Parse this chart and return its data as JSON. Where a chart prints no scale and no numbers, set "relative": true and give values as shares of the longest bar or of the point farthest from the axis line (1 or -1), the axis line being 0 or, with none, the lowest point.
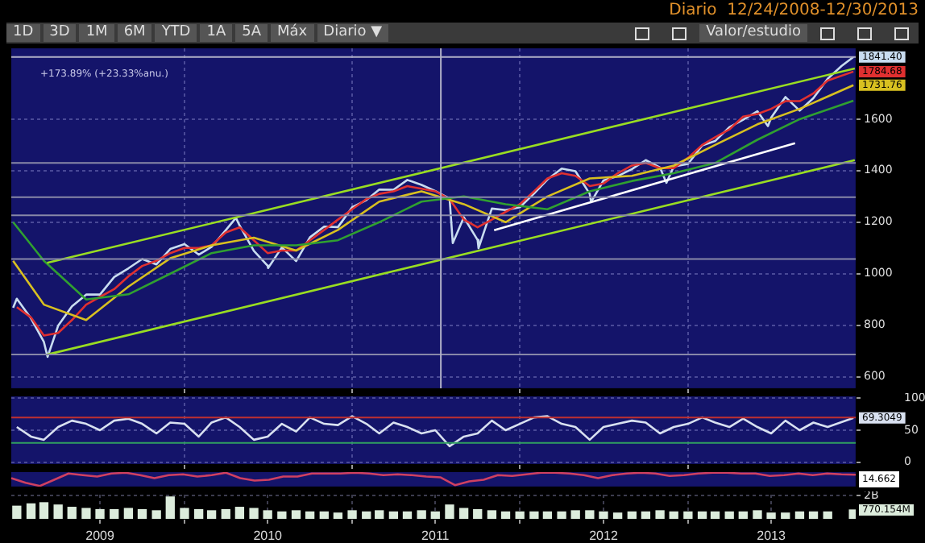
{
  "chart_data": [
    {
      "type": "other",
      "subtitle": "Diario  12/24/2008-12/30/2013",
      "annotations": [
        "1D",
        "3D",
        "1M",
        "6M",
        "YTD",
        "1A",
        "5A",
        "Máx",
        "Diario ▼",
        "Valor/estudio"
      ]
    },
    {
      "type": "line",
      "tick_labels": "y",
      "grid": true,
      "xlim": [
        "2008-12-20",
        "2014-01-01"
      ],
      "ylim": [
        555,
        1875
      ],
      "yticks": [
        600,
        800,
        1000,
        1200,
        1400,
        1600
      ],
      "xticks": [
        {
          "value": "2010-01-01",
          "label": null
        },
        {
          "value": "2011-01-01",
          "label": null
        },
        {
          "value": "2012-01-01",
          "label": null
        },
        {
          "value": "2013-01-01",
          "label": null
        }
      ],
      "x": [
        "2009-01",
        "2009-02",
        "2009-03",
        "2009-04",
        "2009-05",
        "2009-06",
        "2009-07",
        "2009-08",
        "2009-09",
        "2009-10",
        "2009-11",
        "2009-12",
        "2010-01",
        "2010-02",
        "2010-03",
        "2010-04",
        "2010-05",
        "2010-06",
        "2010-07",
        "2010-08",
        "2010-09",
        "2010-10",
        "2010-11",
        "2010-12",
        "2011-01",
        "2011-02",
        "2011-03",
        "2011-04",
        "2011-05",
        "2011-06",
        "2011-07",
        "2011-08",
        "2011-09",
        "2011-10",
        "2011-11",
        "2011-12",
        "2012-01",
        "2012-02",
        "2012-03",
        "2012-04",
        "2012-05",
        "2012-06",
        "2012-07",
        "2012-08",
        "2012-09",
        "2012-10",
        "2012-11",
        "2012-12",
        "2013-01",
        "2013-02",
        "2013-03",
        "2013-04",
        "2013-05",
        "2013-06",
        "2013-07",
        "2013-08",
        "2013-09",
        "2013-10",
        "2013-11",
        "2013-12-27"
      ],
      "series": [
        {
          "color": "#99dd22",
          "x": [
            "2009-03-08",
            "2013-12-30"
          ],
          "values": [
            1042,
            1797
          ]
        },
        {
          "color": "#99dd22",
          "x": [
            "2009-03-08",
            "2013-12-30"
          ],
          "values": [
            686,
            1441
          ]
        },
        {
          "color": "#ffffff",
          "x": [
            "2011-11-06",
            "2013-08-22"
          ],
          "values": [
            1169,
            1507
          ]
        },
        {
          "color": "#30a030",
          "x": [
            "2008-12-24",
            "2009-03",
            "2009-06",
            "2009-09",
            "2009-12",
            "2010-03",
            "2010-06",
            "2010-09",
            "2010-12",
            "2011-03",
            "2011-06",
            "2011-09",
            "2011-12",
            "2012-03",
            "2012-06",
            "2012-09",
            "2012-12",
            "2013-03",
            "2013-06",
            "2013-09",
            "2013-12-27"
          ],
          "values": [
            1200,
            1050,
            900,
            920,
            1000,
            1080,
            1110,
            1110,
            1130,
            1200,
            1280,
            1300,
            1270,
            1250,
            1320,
            1360,
            1390,
            1430,
            1520,
            1600,
            1672
          ]
        },
        {
          "color": "#d8c020",
          "x": [
            "2008-12-24",
            "2009-03",
            "2009-06",
            "2009-09",
            "2009-12",
            "2010-03",
            "2010-06",
            "2010-09",
            "2010-12",
            "2011-03",
            "2011-06",
            "2011-09",
            "2011-12",
            "2012-03",
            "2012-06",
            "2012-09",
            "2012-12",
            "2013-03",
            "2013-06",
            "2013-09",
            "2013-12-27"
          ],
          "values": [
            1050,
            880,
            820,
            950,
            1060,
            1110,
            1140,
            1090,
            1170,
            1280,
            1320,
            1270,
            1200,
            1300,
            1370,
            1380,
            1420,
            1500,
            1580,
            1640,
            1731.76
          ],
          "value_labels": [
            null,
            null,
            null,
            null,
            null,
            null,
            null,
            null,
            null,
            null,
            null,
            null,
            null,
            null,
            null,
            null,
            null,
            null,
            null,
            null,
            "1731.76"
          ]
        },
        {
          "color": "#e03030",
          "values": [
            870,
            830,
            760,
            770,
            820,
            880,
            910,
            940,
            990,
            1030,
            1050,
            1080,
            1100,
            1100,
            1110,
            1160,
            1180,
            1130,
            1080,
            1090,
            1090,
            1130,
            1170,
            1210,
            1250,
            1290,
            1310,
            1320,
            1340,
            1330,
            1320,
            1290,
            1210,
            1180,
            1210,
            1240,
            1270,
            1320,
            1370,
            1390,
            1380,
            1340,
            1350,
            1390,
            1420,
            1430,
            1410,
            1410,
            1450,
            1500,
            1530,
            1560,
            1610,
            1620,
            1640,
            1670,
            1670,
            1700,
            1750,
            1784.68
          ],
          "value_labels": [
            null,
            null,
            null,
            null,
            null,
            null,
            null,
            null,
            null,
            null,
            null,
            null,
            null,
            null,
            null,
            null,
            null,
            null,
            null,
            null,
            null,
            null,
            null,
            null,
            null,
            null,
            null,
            null,
            null,
            null,
            null,
            null,
            null,
            null,
            null,
            null,
            null,
            null,
            null,
            null,
            null,
            null,
            null,
            null,
            null,
            null,
            null,
            null,
            null,
            null,
            null,
            null,
            null,
            null,
            null,
            null,
            null,
            null,
            null,
            "1784.68"
          ]
        },
        {
          "color": "#c8dcf0",
          "x": [
            "2008-12-24",
            "2009-01",
            "2009-02",
            "2009-03",
            "2009-03-09",
            "2009-04",
            "2009-05",
            "2009-06",
            "2009-07",
            "2009-08",
            "2009-09",
            "2009-10",
            "2009-11",
            "2009-12",
            "2010-01",
            "2010-02",
            "2010-03",
            "2010-04",
            "2010-04-23",
            "2010-05",
            "2010-06",
            "2010-07",
            "2010-07-02",
            "2010-08",
            "2010-09",
            "2010-10",
            "2010-11",
            "2010-12",
            "2011-01",
            "2011-02",
            "2011-03",
            "2011-04",
            "2011-05",
            "2011-06",
            "2011-07",
            "2011-08",
            "2011-08-08",
            "2011-09",
            "2011-10",
            "2011-10-03",
            "2011-11",
            "2011-12",
            "2012-01",
            "2012-02",
            "2012-03",
            "2012-04",
            "2012-05",
            "2012-06",
            "2012-06-04",
            "2012-07",
            "2012-08",
            "2012-09",
            "2012-10",
            "2012-11",
            "2012-11-15",
            "2012-12",
            "2013-01",
            "2013-02",
            "2013-03",
            "2013-04",
            "2013-05",
            "2013-06",
            "2013-06-24",
            "2013-07",
            "2013-08",
            "2013-09",
            "2013-10",
            "2013-11",
            "2013-12",
            "2013-12-27"
          ],
          "values": [
            868,
            903,
            826,
            735,
            677,
            798,
            873,
            919,
            919,
            987,
            1021,
            1057,
            1036,
            1096,
            1115,
            1074,
            1104,
            1169,
            1217,
            1187,
            1089,
            1031,
            1022,
            1102,
            1049,
            1141,
            1183,
            1181,
            1258,
            1286,
            1327,
            1326,
            1364,
            1345,
            1321,
            1292,
            1119,
            1219,
            1131,
            1099,
            1253,
            1247,
            1258,
            1312,
            1366,
            1408,
            1398,
            1310,
            1278,
            1362,
            1379,
            1406,
            1441,
            1412,
            1353,
            1416,
            1426,
            1498,
            1515,
            1569,
            1598,
            1631,
            1573,
            1606,
            1686,
            1633,
            1682,
            1757,
            1806,
            1841.4
          ],
          "value_labels": [
            null,
            null,
            null,
            null,
            null,
            null,
            null,
            null,
            null,
            null,
            null,
            null,
            null,
            null,
            null,
            null,
            null,
            null,
            null,
            null,
            null,
            null,
            null,
            null,
            null,
            null,
            null,
            null,
            null,
            null,
            null,
            null,
            null,
            null,
            null,
            null,
            null,
            null,
            null,
            null,
            null,
            null,
            null,
            null,
            null,
            null,
            null,
            null,
            null,
            null,
            null,
            null,
            null,
            null,
            null,
            null,
            null,
            null,
            null,
            null,
            null,
            null,
            null,
            null,
            null,
            null,
            null,
            null,
            null,
            "1841.40"
          ]
        }
      ],
      "ref_lines": [
        {
          "axis": "y",
          "value": 1841.4,
          "color": "#b0b0c8"
        },
        {
          "axis": "y",
          "value": 1430,
          "color": "#8888a8"
        },
        {
          "axis": "y",
          "value": 1297,
          "color": "#8888a8"
        },
        {
          "axis": "y",
          "value": 1227,
          "color": "#8888a8"
        },
        {
          "axis": "y",
          "value": 1057,
          "color": "#8888a8"
        },
        {
          "axis": "y",
          "value": 686,
          "color": "#8888a8"
        },
        {
          "axis": "x",
          "value": "2011-07-13",
          "color": "#b0b0c8"
        }
      ],
      "annotations": [
        "+173.89% (+23.33%anu.)"
      ]
    },
    {
      "type": "line",
      "tick_labels": "y",
      "grid": true,
      "xlim": [
        "2008-12-20",
        "2014-01-01"
      ],
      "ylim": [
        -3,
        103
      ],
      "yticks": [
        0,
        50,
        100
      ],
      "xticks": [
        {
          "value": "2010-01-01",
          "label": null
        },
        {
          "value": "2011-01-01",
          "label": null
        },
        {
          "value": "2012-01-01",
          "label": null
        },
        {
          "value": "2013-01-01",
          "label": null
        }
      ],
      "x": [
        "2009-01",
        "2009-02",
        "2009-03",
        "2009-04",
        "2009-05",
        "2009-06",
        "2009-07",
        "2009-08",
        "2009-09",
        "2009-10",
        "2009-11",
        "2009-12",
        "2010-01",
        "2010-02",
        "2010-03",
        "2010-04",
        "2010-05",
        "2010-06",
        "2010-07",
        "2010-08",
        "2010-09",
        "2010-10",
        "2010-11",
        "2010-12",
        "2011-01",
        "2011-02",
        "2011-03",
        "2011-04",
        "2011-05",
        "2011-06",
        "2011-07",
        "2011-08",
        "2011-09",
        "2011-10",
        "2011-11",
        "2011-12",
        "2012-01",
        "2012-02",
        "2012-03",
        "2012-04",
        "2012-05",
        "2012-06",
        "2012-07",
        "2012-08",
        "2012-09",
        "2012-10",
        "2012-11",
        "2012-12",
        "2013-01",
        "2013-02",
        "2013-03",
        "2013-04",
        "2013-05",
        "2013-06",
        "2013-07",
        "2013-08",
        "2013-09",
        "2013-10",
        "2013-11",
        "2013-12-27"
      ],
      "series": [
        {
          "color": "#d8e0f0",
          "values": [
            55,
            40,
            35,
            55,
            65,
            60,
            50,
            65,
            68,
            60,
            45,
            62,
            60,
            40,
            62,
            70,
            55,
            35,
            40,
            60,
            48,
            70,
            60,
            58,
            72,
            60,
            45,
            62,
            55,
            45,
            50,
            25,
            40,
            45,
            65,
            50,
            60,
            70,
            72,
            60,
            55,
            35,
            55,
            60,
            65,
            62,
            45,
            55,
            60,
            70,
            62,
            55,
            68,
            55,
            45,
            65,
            50,
            62,
            55,
            69.3049
          ],
          "value_labels": [
            null,
            null,
            null,
            null,
            null,
            null,
            null,
            null,
            null,
            null,
            null,
            null,
            null,
            null,
            null,
            null,
            null,
            null,
            null,
            null,
            null,
            null,
            null,
            null,
            null,
            null,
            null,
            null,
            null,
            null,
            null,
            null,
            null,
            null,
            null,
            null,
            null,
            null,
            null,
            null,
            null,
            null,
            null,
            null,
            null,
            null,
            null,
            null,
            null,
            null,
            null,
            null,
            null,
            null,
            null,
            null,
            null,
            null,
            null,
            "69.3049"
          ]
        }
      ],
      "ref_lines": [
        {
          "axis": "y",
          "value": 70,
          "color": "#c03030"
        },
        {
          "axis": "y",
          "value": 30,
          "color": "#30a060"
        }
      ]
    },
    {
      "type": "line",
      "relative": true,
      "tick_labels": false,
      "categories": [
        null,
        null,
        null,
        null,
        null,
        null,
        null,
        null,
        null,
        null,
        null,
        null,
        null,
        null,
        null,
        null,
        null,
        null,
        null,
        null,
        null,
        null,
        null,
        null,
        null,
        null,
        null,
        null,
        null,
        null,
        null,
        null,
        null,
        null,
        null,
        null,
        null,
        null,
        null,
        null,
        null,
        null,
        null,
        null,
        null,
        null,
        null,
        null,
        null,
        null,
        null,
        null,
        null,
        null,
        null,
        null,
        null,
        null,
        null,
        null
      ],
      "series": [
        {
          "color": "#d04060",
          "values": [
            0.59,
            0.24,
            0,
            0.47,
            0.94,
            0.82,
            0.71,
            0.94,
            1,
            0.82,
            0.59,
            0.82,
            0.88,
            0.71,
            0.82,
            1,
            0.59,
            0.41,
            0.47,
            0.71,
            0.71,
            0.94,
            0.94,
            0.94,
            1,
            0.94,
            0.82,
            0.88,
            0.82,
            0.71,
            0.65,
            0.06,
            0.35,
            0.47,
            0.82,
            0.76,
            0.88,
            1,
            1,
            0.94,
            0.82,
            0.59,
            0.82,
            0.94,
            1,
            0.94,
            0.76,
            0.82,
            0.94,
            1,
            1,
            0.94,
            0.94,
            0.76,
            0.82,
            0.94,
            0.82,
            0.94,
            0.88,
            0.85
          ]
        }
      ],
      "annotations": [
        "14.662"
      ]
    },
    {
      "type": "bar",
      "tick_labels": "xy",
      "grid": true,
      "xlim": [
        "2008-12-20",
        "2014-01-01"
      ],
      "ylim": [
        0,
        2100000000
      ],
      "yticks": [
        {
          "value": 2000000000,
          "label": "2B"
        }
      ],
      "xticks": [
        {
          "value": "2009-07-01",
          "label": "2009"
        },
        {
          "value": "2010-01-01",
          "label": null
        },
        {
          "value": "2010-07-01",
          "label": "2010"
        },
        {
          "value": "2011-01-01",
          "label": null
        },
        {
          "value": "2011-07-01",
          "label": "2011"
        },
        {
          "value": "2012-01-01",
          "label": null
        },
        {
          "value": "2012-07-01",
          "label": "2012"
        },
        {
          "value": "2013-01-01",
          "label": null
        },
        {
          "value": "2013-07-01",
          "label": "2013"
        }
      ],
      "x": [
        "2009-01",
        "2009-02",
        "2009-03",
        "2009-04",
        "2009-05",
        "2009-06",
        "2009-07",
        "2009-08",
        "2009-09",
        "2009-10",
        "2009-11",
        "2009-12",
        "2010-01",
        "2010-02",
        "2010-03",
        "2010-04",
        "2010-05",
        "2010-06",
        "2010-07",
        "2010-08",
        "2010-09",
        "2010-10",
        "2010-11",
        "2010-12",
        "2011-01",
        "2011-02",
        "2011-03",
        "2011-04",
        "2011-05",
        "2011-06",
        "2011-07",
        "2011-08",
        "2011-09",
        "2011-10",
        "2011-11",
        "2011-12",
        "2012-01",
        "2012-02",
        "2012-03",
        "2012-04",
        "2012-05",
        "2012-06",
        "2012-07",
        "2012-08",
        "2012-09",
        "2012-10",
        "2012-11",
        "2012-12",
        "2013-01",
        "2013-02",
        "2013-03",
        "2013-04",
        "2013-05",
        "2013-06",
        "2013-07",
        "2013-08",
        "2013-09",
        "2013-10",
        "2013-11",
        "2013-12-27"
      ],
      "series": [
        {
          "color": "#dcecdc",
          "values": [
            1100000000,
            1300000000,
            1400000000,
            1200000000,
            1000000000,
            900000000,
            800000000,
            800000000,
            900000000,
            800000000,
            700000000,
            1900000000,
            900000000,
            800000000,
            700000000,
            800000000,
            1000000000,
            900000000,
            700000000,
            600000000,
            700000000,
            600000000,
            600000000,
            500000000,
            700000000,
            600000000,
            700000000,
            600000000,
            600000000,
            700000000,
            600000000,
            1200000000,
            900000000,
            800000000,
            700000000,
            600000000,
            600000000,
            600000000,
            600000000,
            600000000,
            700000000,
            700000000,
            600000000,
            500000000,
            600000000,
            600000000,
            700000000,
            600000000,
            600000000,
            600000000,
            600000000,
            600000000,
            600000000,
            700000000,
            500000000,
            500000000,
            600000000,
            600000000,
            600000000,
            770154000
          ],
          "value_labels": [
            null,
            null,
            null,
            null,
            null,
            null,
            null,
            null,
            null,
            null,
            null,
            null,
            null,
            null,
            null,
            null,
            null,
            null,
            null,
            null,
            null,
            null,
            null,
            null,
            null,
            null,
            null,
            null,
            null,
            null,
            null,
            null,
            null,
            null,
            null,
            null,
            null,
            null,
            null,
            null,
            null,
            null,
            null,
            null,
            null,
            null,
            null,
            null,
            null,
            null,
            null,
            null,
            null,
            null,
            null,
            null,
            null,
            null,
            null,
            "770.154M"
          ]
        }
      ]
    }
  ]
}
